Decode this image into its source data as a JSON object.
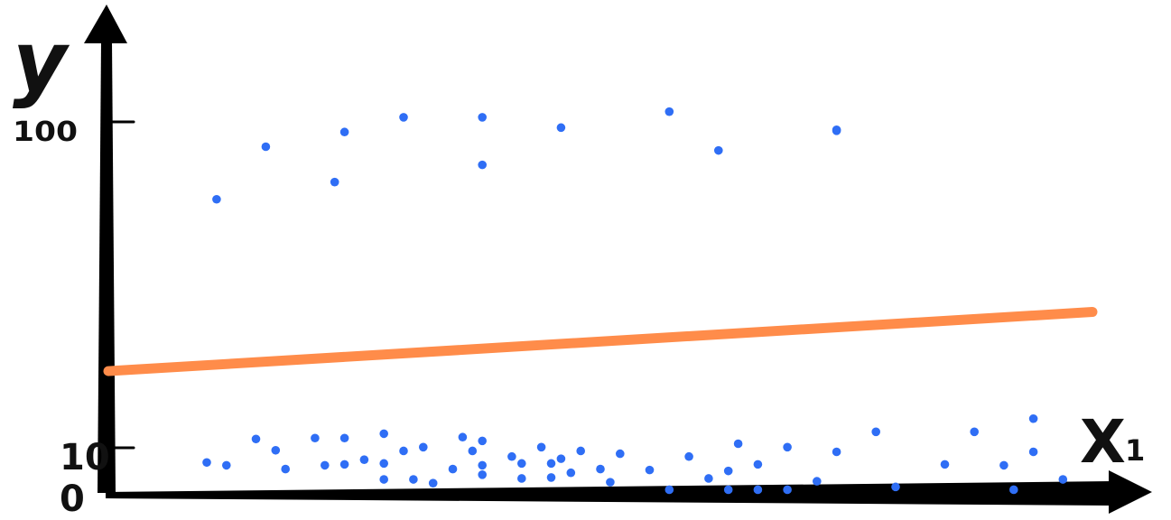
{
  "chart_data": {
    "type": "scatter",
    "title": "",
    "xlabel": "X",
    "xlabel_subscript": "1",
    "ylabel": "y",
    "x_range": [
      0,
      10
    ],
    "y_range": [
      0,
      150
    ],
    "y_ticks": [
      {
        "label": "0",
        "value": 0
      },
      {
        "label": "10",
        "value": 10
      },
      {
        "label": "100",
        "value": 100
      }
    ],
    "grid": false,
    "legend": "none",
    "points_color": "#2f6ef5",
    "line_color": "#ff8c4a",
    "axis_color": "#000000",
    "regression_line": {
      "x": [
        0,
        10
      ],
      "y": [
        39.5,
        58.4
      ]
    },
    "points": [
      {
        "x": 1.1,
        "y": 94.4
      },
      {
        "x": 1.6,
        "y": 111.2
      },
      {
        "x": 2.3,
        "y": 99.9
      },
      {
        "x": 2.4,
        "y": 115.9
      },
      {
        "x": 3.0,
        "y": 120.6
      },
      {
        "x": 3.8,
        "y": 105.4
      },
      {
        "x": 3.8,
        "y": 120.6
      },
      {
        "x": 4.6,
        "y": 117.3
      },
      {
        "x": 5.7,
        "y": 122.4
      },
      {
        "x": 6.2,
        "y": 110.0
      },
      {
        "x": 7.4,
        "y": 116.3
      },
      {
        "x": 7.4,
        "y": 116.6
      },
      {
        "x": 1.0,
        "y": 10.3
      },
      {
        "x": 1.2,
        "y": 9.4
      },
      {
        "x": 1.5,
        "y": 17.8
      },
      {
        "x": 1.7,
        "y": 14.2
      },
      {
        "x": 1.8,
        "y": 8.2
      },
      {
        "x": 2.1,
        "y": 18.1
      },
      {
        "x": 2.2,
        "y": 9.4
      },
      {
        "x": 2.4,
        "y": 9.7
      },
      {
        "x": 2.4,
        "y": 18.1
      },
      {
        "x": 2.6,
        "y": 11.2
      },
      {
        "x": 2.8,
        "y": 4.9
      },
      {
        "x": 2.8,
        "y": 19.5
      },
      {
        "x": 2.8,
        "y": 10.0
      },
      {
        "x": 3.0,
        "y": 14.0
      },
      {
        "x": 3.1,
        "y": 4.9
      },
      {
        "x": 3.2,
        "y": 15.2
      },
      {
        "x": 3.3,
        "y": 3.7
      },
      {
        "x": 3.5,
        "y": 8.2
      },
      {
        "x": 3.6,
        "y": 18.4
      },
      {
        "x": 3.7,
        "y": 14.0
      },
      {
        "x": 3.8,
        "y": 6.4
      },
      {
        "x": 3.8,
        "y": 17.2
      },
      {
        "x": 3.8,
        "y": 9.4
      },
      {
        "x": 4.1,
        "y": 12.2
      },
      {
        "x": 4.2,
        "y": 10.0
      },
      {
        "x": 4.2,
        "y": 5.2
      },
      {
        "x": 4.4,
        "y": 15.2
      },
      {
        "x": 4.5,
        "y": 10.0
      },
      {
        "x": 4.5,
        "y": 5.5
      },
      {
        "x": 4.6,
        "y": 11.5
      },
      {
        "x": 4.7,
        "y": 7.0
      },
      {
        "x": 4.8,
        "y": 14.0
      },
      {
        "x": 5.0,
        "y": 8.2
      },
      {
        "x": 5.1,
        "y": 4.0
      },
      {
        "x": 5.2,
        "y": 13.1
      },
      {
        "x": 5.5,
        "y": 7.9
      },
      {
        "x": 5.7,
        "y": 1.6
      },
      {
        "x": 5.9,
        "y": 12.2
      },
      {
        "x": 6.1,
        "y": 5.2
      },
      {
        "x": 6.3,
        "y": 1.6
      },
      {
        "x": 6.3,
        "y": 7.6
      },
      {
        "x": 6.4,
        "y": 16.3
      },
      {
        "x": 6.6,
        "y": 9.7
      },
      {
        "x": 6.6,
        "y": 1.6
      },
      {
        "x": 6.9,
        "y": 15.2
      },
      {
        "x": 6.9,
        "y": 1.6
      },
      {
        "x": 7.2,
        "y": 4.3
      },
      {
        "x": 7.4,
        "y": 13.7
      },
      {
        "x": 7.8,
        "y": 20.1
      },
      {
        "x": 8.0,
        "y": 2.5
      },
      {
        "x": 8.5,
        "y": 9.7
      },
      {
        "x": 8.8,
        "y": 20.1
      },
      {
        "x": 9.1,
        "y": 9.4
      },
      {
        "x": 9.2,
        "y": 1.6
      },
      {
        "x": 9.4,
        "y": 24.3
      },
      {
        "x": 9.4,
        "y": 13.7
      },
      {
        "x": 9.7,
        "y": 4.9
      }
    ]
  }
}
